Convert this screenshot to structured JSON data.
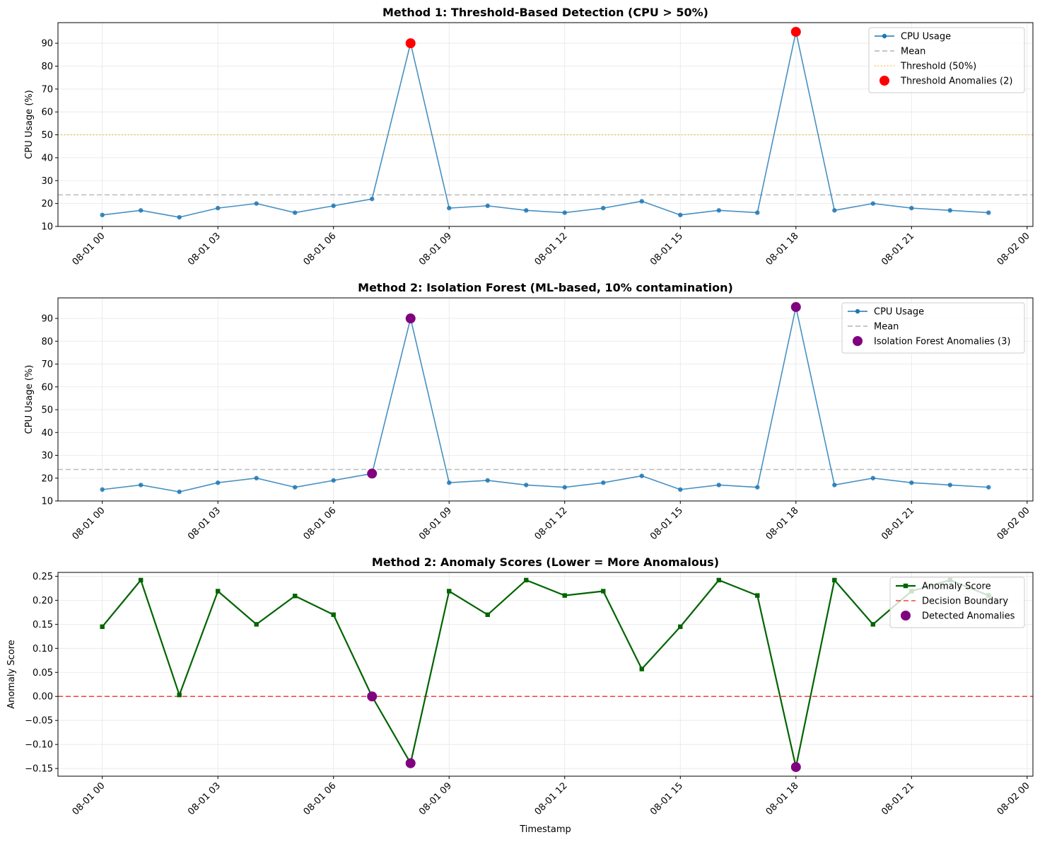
{
  "chart_data": [
    {
      "type": "line",
      "title": "Method 1: Threshold-Based Detection (CPU > 50%)",
      "xlabel": "",
      "ylabel": "CPU Usage (%)",
      "x_tick_labels": [
        "08-01 00",
        "08-01 03",
        "08-01 06",
        "08-01 09",
        "08-01 12",
        "08-01 15",
        "08-01 18",
        "08-01 21",
        "08-02 00"
      ],
      "x_tick_hours": [
        0,
        3,
        6,
        9,
        12,
        15,
        18,
        21,
        24
      ],
      "x_hours": [
        0,
        1,
        2,
        3,
        4,
        5,
        6,
        7,
        8,
        9,
        10,
        11,
        12,
        13,
        14,
        15,
        16,
        17,
        18,
        19,
        20,
        21,
        22,
        23
      ],
      "xlim": [
        -1.15,
        24.15
      ],
      "ylim": [
        10,
        99
      ],
      "y_ticks": [
        10,
        20,
        30,
        40,
        50,
        60,
        70,
        80,
        90
      ],
      "grid": true,
      "legend_position": "upper right",
      "series": [
        {
          "name": "CPU Usage",
          "kind": "line-marker",
          "color": "#1f77b4",
          "values": [
            15,
            17,
            14,
            18,
            20,
            16,
            19,
            22,
            90,
            18,
            19,
            17,
            16,
            18,
            21,
            15,
            17,
            16,
            95,
            17,
            20,
            18,
            17,
            16
          ]
        }
      ],
      "hlines": [
        {
          "name": "Mean",
          "value": 23.8,
          "color": "#999999",
          "style": "dashed"
        },
        {
          "name": "Threshold (50%)",
          "value": 50,
          "color": "#ffa500",
          "style": "dotted"
        }
      ],
      "anomalies": {
        "name": "Threshold Anomalies (2)",
        "color": "#ff0000",
        "points": [
          {
            "x": 8,
            "y": 90
          },
          {
            "x": 18,
            "y": 95
          }
        ]
      },
      "legend": [
        "CPU Usage",
        "Mean",
        "Threshold (50%)",
        "Threshold Anomalies (2)"
      ]
    },
    {
      "type": "line",
      "title": "Method 2: Isolation Forest (ML-based, 10% contamination)",
      "xlabel": "",
      "ylabel": "CPU Usage (%)",
      "x_tick_labels": [
        "08-01 00",
        "08-01 03",
        "08-01 06",
        "08-01 09",
        "08-01 12",
        "08-01 15",
        "08-01 18",
        "08-01 21",
        "08-02 00"
      ],
      "x_tick_hours": [
        0,
        3,
        6,
        9,
        12,
        15,
        18,
        21,
        24
      ],
      "x_hours": [
        0,
        1,
        2,
        3,
        4,
        5,
        6,
        7,
        8,
        9,
        10,
        11,
        12,
        13,
        14,
        15,
        16,
        17,
        18,
        19,
        20,
        21,
        22,
        23
      ],
      "xlim": [
        -1.15,
        24.15
      ],
      "ylim": [
        10,
        99
      ],
      "y_ticks": [
        10,
        20,
        30,
        40,
        50,
        60,
        70,
        80,
        90
      ],
      "grid": true,
      "legend_position": "upper right",
      "series": [
        {
          "name": "CPU Usage",
          "kind": "line-marker",
          "color": "#1f77b4",
          "values": [
            15,
            17,
            14,
            18,
            20,
            16,
            19,
            22,
            90,
            18,
            19,
            17,
            16,
            18,
            21,
            15,
            17,
            16,
            95,
            17,
            20,
            18,
            17,
            16
          ]
        }
      ],
      "hlines": [
        {
          "name": "Mean",
          "value": 23.8,
          "color": "#999999",
          "style": "dashed"
        }
      ],
      "anomalies": {
        "name": "Isolation Forest Anomalies (3)",
        "color": "#800080",
        "points": [
          {
            "x": 7,
            "y": 22
          },
          {
            "x": 8,
            "y": 90
          },
          {
            "x": 18,
            "y": 95
          }
        ]
      },
      "legend": [
        "CPU Usage",
        "Mean",
        "Isolation Forest Anomalies (3)"
      ]
    },
    {
      "type": "line",
      "title": "Method 2: Anomaly Scores (Lower = More Anomalous)",
      "xlabel": "Timestamp",
      "ylabel": "Anomaly Score",
      "x_tick_labels": [
        "08-01 00",
        "08-01 03",
        "08-01 06",
        "08-01 09",
        "08-01 12",
        "08-01 15",
        "08-01 18",
        "08-01 21",
        "08-02 00"
      ],
      "x_tick_hours": [
        0,
        3,
        6,
        9,
        12,
        15,
        18,
        21,
        24
      ],
      "x_hours": [
        0,
        1,
        2,
        3,
        4,
        5,
        6,
        7,
        8,
        9,
        10,
        11,
        12,
        13,
        14,
        15,
        16,
        17,
        18,
        19,
        20,
        21,
        22,
        23
      ],
      "xlim": [
        -1.15,
        24.15
      ],
      "ylim": [
        -0.166,
        0.258
      ],
      "y_ticks": [
        -0.15,
        -0.1,
        -0.05,
        0.0,
        0.05,
        0.1,
        0.15,
        0.2,
        0.25
      ],
      "y_tick_labels": [
        "−0.15",
        "−0.10",
        "−0.05",
        "0.00",
        "0.05",
        "0.10",
        "0.15",
        "0.20",
        "0.25"
      ],
      "grid": true,
      "legend_position": "upper right",
      "series": [
        {
          "name": "Anomaly Score",
          "kind": "line-square",
          "color": "#006400",
          "values": [
            0.145,
            0.242,
            0.003,
            0.219,
            0.15,
            0.209,
            0.17,
            0.0,
            -0.139,
            0.219,
            0.17,
            0.242,
            0.21,
            0.219,
            0.057,
            0.145,
            0.242,
            0.21,
            -0.147,
            0.242,
            0.15,
            0.219,
            0.242,
            0.21
          ]
        }
      ],
      "hlines": [
        {
          "name": "Decision Boundary",
          "value": 0,
          "color": "#ff0000",
          "style": "dashed"
        }
      ],
      "anomalies": {
        "name": "Detected Anomalies",
        "color": "#800080",
        "points": [
          {
            "x": 7,
            "y": 0.0
          },
          {
            "x": 8,
            "y": -0.139
          },
          {
            "x": 18,
            "y": -0.147
          }
        ]
      },
      "legend": [
        "Anomaly Score",
        "Decision Boundary",
        "Detected Anomalies"
      ]
    }
  ]
}
